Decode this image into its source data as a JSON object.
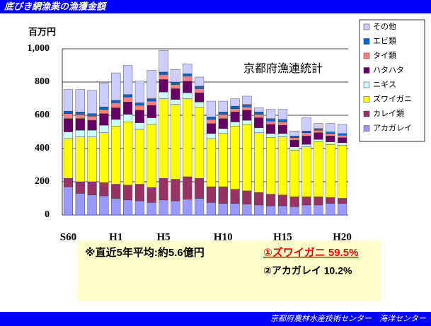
{
  "header": {
    "title": "底びき網漁業の漁獲金額"
  },
  "chart_data": {
    "type": "stacked_bar",
    "unit_label": "百万円",
    "annotation": "京都府漁連統計",
    "categories": [
      "S60",
      null,
      null,
      null,
      "H1",
      null,
      null,
      null,
      "H5",
      null,
      null,
      null,
      null,
      "H10",
      null,
      null,
      null,
      null,
      "H15",
      null,
      null,
      null,
      null,
      "H20"
    ],
    "series": [
      {
        "name": "アカガレイ",
        "color": "#9999ff",
        "values": [
          170,
          130,
          120,
          115,
          100,
          90,
          85,
          75,
          90,
          85,
          95,
          100,
          75,
          70,
          70,
          65,
          60,
          55,
          55,
          50,
          60,
          60,
          70,
          70
        ]
      },
      {
        "name": "カレイ類",
        "color": "#993366",
        "values": [
          50,
          70,
          80,
          80,
          85,
          90,
          100,
          90,
          130,
          130,
          135,
          120,
          95,
          100,
          85,
          80,
          75,
          70,
          65,
          60,
          50,
          50,
          35,
          30
        ]
      },
      {
        "name": "ズワイガニ",
        "color": "#ffff00",
        "values": [
          240,
          270,
          270,
          300,
          350,
          380,
          330,
          380,
          480,
          450,
          470,
          430,
          290,
          320,
          380,
          400,
          360,
          340,
          350,
          280,
          300,
          330,
          320,
          320
        ]
      },
      {
        "name": "ニギス",
        "color": "#ccffff",
        "values": [
          40,
          40,
          40,
          45,
          40,
          45,
          40,
          40,
          40,
          30,
          35,
          30,
          30,
          30,
          25,
          25,
          30,
          25,
          20,
          20,
          15,
          15,
          15,
          15
        ]
      },
      {
        "name": "ハタハタ",
        "color": "#660066",
        "values": [
          80,
          70,
          60,
          70,
          70,
          75,
          75,
          75,
          75,
          65,
          70,
          55,
          60,
          60,
          60,
          60,
          60,
          55,
          50,
          40,
          50,
          40,
          35,
          30
        ]
      },
      {
        "name": "タイ類",
        "color": "#ff8080",
        "values": [
          30,
          25,
          25,
          25,
          30,
          30,
          30,
          25,
          30,
          25,
          30,
          25,
          25,
          25,
          20,
          20,
          20,
          20,
          20,
          15,
          20,
          15,
          15,
          15
        ]
      },
      {
        "name": "エビ類",
        "color": "#0066cc",
        "values": [
          15,
          15,
          15,
          15,
          15,
          15,
          15,
          15,
          15,
          15,
          15,
          15,
          15,
          15,
          15,
          15,
          15,
          15,
          15,
          10,
          10,
          10,
          10,
          10
        ]
      },
      {
        "name": "その他",
        "color": "#ccccff",
        "values": [
          130,
          135,
          140,
          145,
          165,
          175,
          130,
          170,
          130,
          75,
          60,
          55,
          95,
          65,
          45,
          50,
          25,
          55,
          60,
          30,
          80,
          30,
          50,
          55
        ]
      }
    ],
    "ylim": [
      0,
      1000
    ],
    "yticks": [
      0,
      200,
      400,
      600,
      800,
      {
        "value": 1000,
        "label": "1,000"
      }
    ],
    "grid": true
  },
  "notes": [
    "※直近5年平均:約5.6億円",
    "①ズワイガニ 59.5%",
    "②アカガレイ 10.2%"
  ],
  "footer": "京都府農林水産技術センター　海洋センター"
}
